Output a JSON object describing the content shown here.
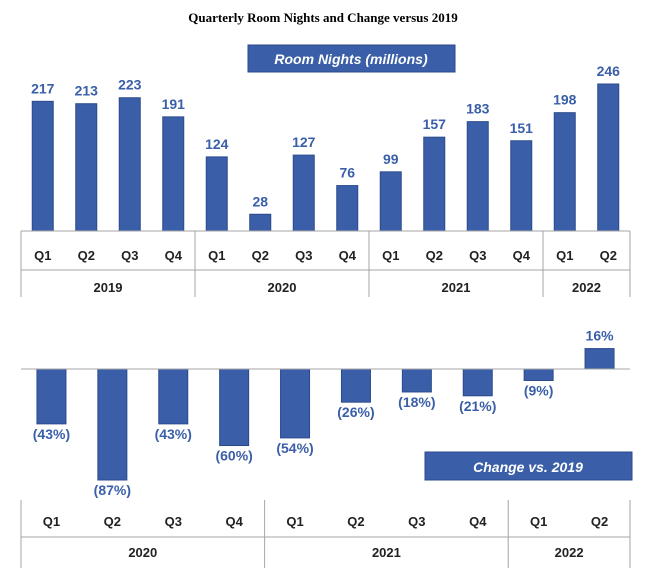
{
  "title": "Quarterly Room Nights and Change versus 2019",
  "chart_data": [
    {
      "type": "bar",
      "title": "Room Nights (millions)",
      "categories": [
        "Q1",
        "Q2",
        "Q3",
        "Q4",
        "Q1",
        "Q2",
        "Q3",
        "Q4",
        "Q1",
        "Q2",
        "Q3",
        "Q4",
        "Q1",
        "Q2"
      ],
      "groups": [
        {
          "label": "2019",
          "count": 4
        },
        {
          "label": "2020",
          "count": 4
        },
        {
          "label": "2021",
          "count": 4
        },
        {
          "label": "2022",
          "count": 2
        }
      ],
      "values": [
        217,
        213,
        223,
        191,
        124,
        28,
        127,
        76,
        99,
        157,
        183,
        151,
        198,
        246
      ],
      "labels": [
        "217",
        "213",
        "223",
        "191",
        "124",
        "28",
        "127",
        "76",
        "99",
        "157",
        "183",
        "151",
        "198",
        "246"
      ],
      "ylim": [
        0,
        246
      ],
      "color": "#3a5fa8"
    },
    {
      "type": "bar",
      "title": "Change vs. 2019",
      "categories": [
        "Q1",
        "Q2",
        "Q3",
        "Q4",
        "Q1",
        "Q2",
        "Q3",
        "Q4",
        "Q1",
        "Q2"
      ],
      "groups": [
        {
          "label": "2020",
          "count": 4
        },
        {
          "label": "2021",
          "count": 4
        },
        {
          "label": "2022",
          "count": 2
        }
      ],
      "values": [
        -43,
        -87,
        -43,
        -60,
        -54,
        -26,
        -18,
        -21,
        -9,
        16
      ],
      "labels": [
        "(43%)",
        "(87%)",
        "(43%)",
        "(60%)",
        "(54%)",
        "(26%)",
        "(18%)",
        "(21%)",
        "(9%)",
        "16%"
      ],
      "ylim": [
        -87,
        16
      ],
      "color": "#3a5fa8"
    }
  ]
}
